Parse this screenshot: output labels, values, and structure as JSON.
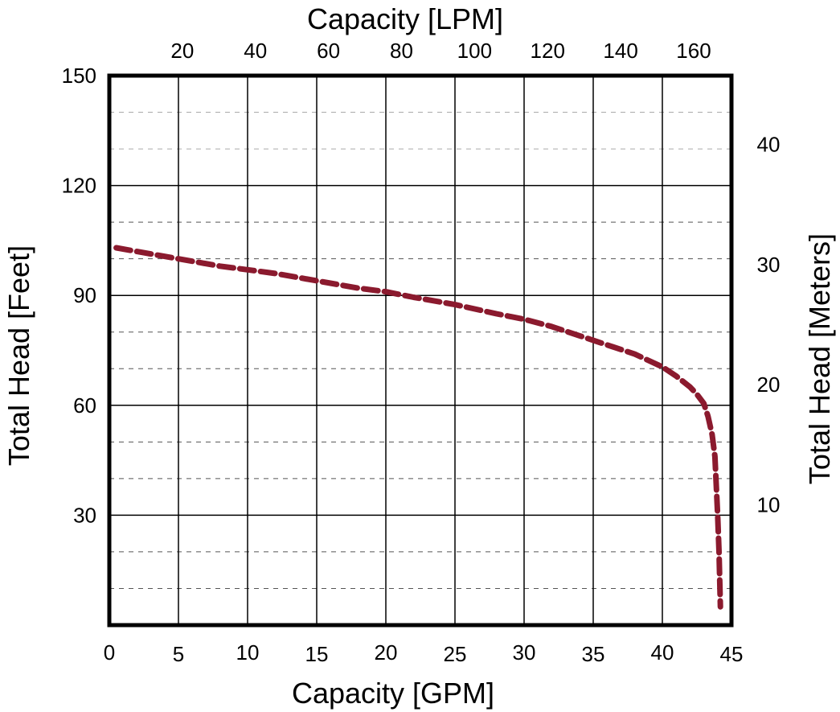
{
  "chart_data": {
    "type": "line",
    "xlabel_bottom": "Capacity [GPM]",
    "xlabel_top": "Capacity [LPM]",
    "ylabel_left": "Total Head [Feet]",
    "ylabel_right": "Total Head [Meters]",
    "xlim": [
      0,
      45
    ],
    "ylim": [
      0,
      150
    ],
    "x_ticks_bottom": [
      "0",
      "5",
      "10",
      "15",
      "20",
      "25",
      "30",
      "35",
      "40",
      "45"
    ],
    "x_ticks_top": [
      "20",
      "40",
      "60",
      "80",
      "100",
      "120",
      "140",
      "160"
    ],
    "y_ticks_left": [
      "30",
      "60",
      "90",
      "120",
      "150"
    ],
    "y_ticks_right": [
      "10",
      "20",
      "30",
      "40"
    ],
    "grid": true,
    "line_color": "#8b1a2e",
    "series": [
      {
        "x": [
          0.5,
          2,
          5,
          8,
          10,
          12,
          15,
          18,
          20,
          22,
          25,
          28,
          30,
          32,
          34,
          36,
          38,
          40,
          41,
          42,
          42.5,
          43,
          43.3,
          43.6,
          43.8,
          43.9,
          44.0,
          44.1,
          44.15,
          44.2
        ],
        "y": [
          103,
          102,
          100,
          98,
          97,
          96,
          94,
          92,
          91,
          89.5,
          87.5,
          85,
          83.5,
          81.5,
          79,
          76.5,
          74,
          70.5,
          68,
          65,
          63,
          60.5,
          57,
          52,
          46,
          38,
          30,
          20,
          12,
          5
        ]
      }
    ]
  }
}
